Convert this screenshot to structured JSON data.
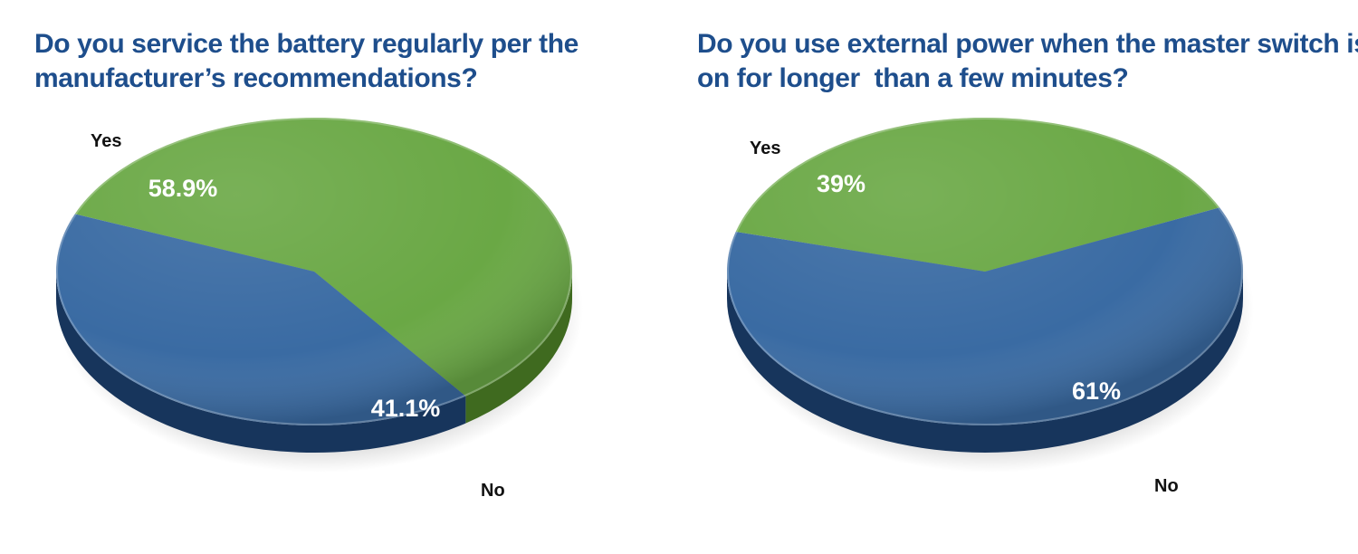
{
  "colors": {
    "title": "#1e4e8c",
    "yes": "#6aa845",
    "no": "#3a6ba3",
    "yes_rim": "#3f6a1f",
    "no_rim": "#17355c",
    "outer_label": "#111111",
    "value_label": "#ffffff"
  },
  "chart_data": [
    {
      "type": "pie",
      "title": "Do you service the battery regularly per the\nmanufacturer’s recommendations?",
      "slices": [
        {
          "name": "Yes",
          "value": 58.9,
          "value_label": "58.9%"
        },
        {
          "name": "No",
          "value": 41.1,
          "value_label": "41.1%"
        }
      ]
    },
    {
      "type": "pie",
      "title": "Do you use external power when the master switch is\non for longer  than a few minutes?",
      "slices": [
        {
          "name": "Yes",
          "value": 39,
          "value_label": "39%"
        },
        {
          "name": "No",
          "value": 61,
          "value_label": "61%"
        }
      ]
    }
  ]
}
